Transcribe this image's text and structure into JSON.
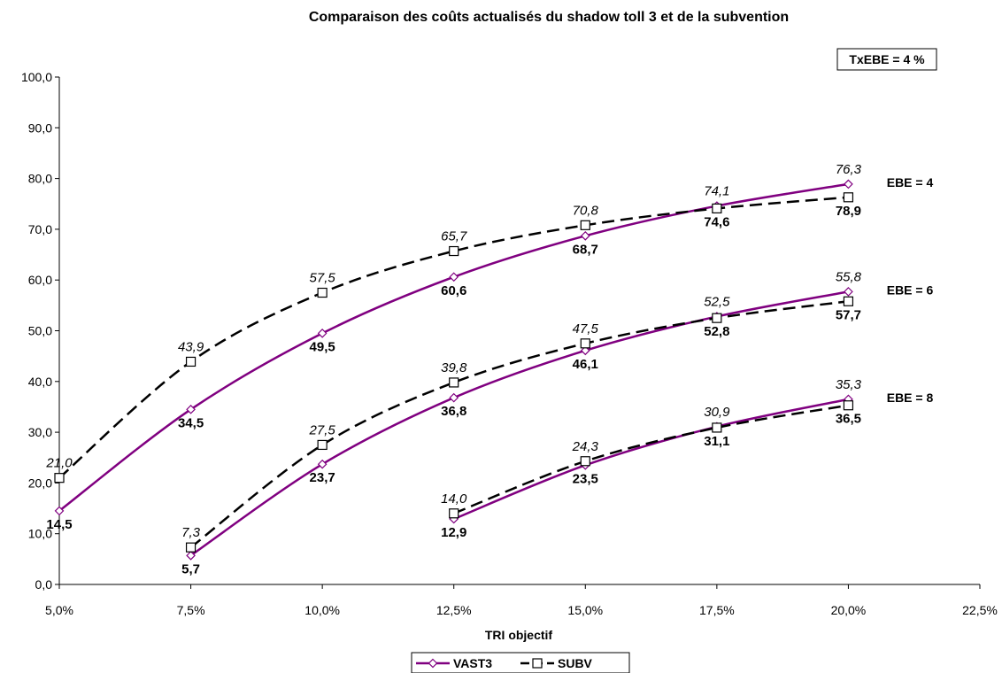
{
  "chart_data": {
    "type": "line",
    "title": "Comparaison des coûts actualisés du shadow toll 3 et de la subvention",
    "xlabel": "TRI objectif",
    "ylabel": "",
    "xlim": [
      0.05,
      0.225
    ],
    "ylim": [
      0,
      100
    ],
    "x_ticks": [
      "5,0%",
      "7,5%",
      "10,0%",
      "12,5%",
      "15,0%",
      "17,5%",
      "20,0%",
      "22,5%"
    ],
    "y_ticks": [
      "0,0",
      "10,0",
      "20,0",
      "30,0",
      "40,0",
      "50,0",
      "60,0",
      "70,0",
      "80,0",
      "90,0",
      "100,0"
    ],
    "grid": false,
    "legend_position": "bottom",
    "legend": [
      "VAST3",
      "SUBV"
    ],
    "annotations": {
      "top_box": "TxEBE = 4 %",
      "group_labels": [
        "EBE = 4",
        "EBE = 6",
        "EBE = 8"
      ]
    },
    "series": [
      {
        "name": "VAST3",
        "group": "EBE = 4",
        "style": "vast",
        "x": [
          0.05,
          0.075,
          0.1,
          0.125,
          0.15,
          0.175,
          0.2
        ],
        "y": [
          14.5,
          34.5,
          49.5,
          60.6,
          68.7,
          74.6,
          78.9
        ],
        "labels": [
          "14,5",
          "34,5",
          "49,5",
          "60,6",
          "68,7",
          "74,6",
          "78,9"
        ]
      },
      {
        "name": "SUBV",
        "group": "EBE = 4",
        "style": "subv",
        "x": [
          0.05,
          0.075,
          0.1,
          0.125,
          0.15,
          0.175,
          0.2
        ],
        "y": [
          21.0,
          43.9,
          57.5,
          65.7,
          70.8,
          74.1,
          76.3
        ],
        "labels": [
          "21,0",
          "43,9",
          "57,5",
          "65,7",
          "70,8",
          "74,1",
          "76,3"
        ]
      },
      {
        "name": "VAST3",
        "group": "EBE = 6",
        "style": "vast",
        "x": [
          0.075,
          0.1,
          0.125,
          0.15,
          0.175,
          0.2
        ],
        "y": [
          5.7,
          23.7,
          36.8,
          46.1,
          52.8,
          57.7
        ],
        "labels": [
          "5,7",
          "23,7",
          "36,8",
          "46,1",
          "52,8",
          "57,7"
        ]
      },
      {
        "name": "SUBV",
        "group": "EBE = 6",
        "style": "subv",
        "x": [
          0.075,
          0.1,
          0.125,
          0.15,
          0.175,
          0.2
        ],
        "y": [
          7.3,
          27.5,
          39.8,
          47.5,
          52.5,
          55.8
        ],
        "labels": [
          "7,3",
          "27,5",
          "39,8",
          "47,5",
          "52,5",
          "55,8"
        ]
      },
      {
        "name": "VAST3",
        "group": "EBE = 8",
        "style": "vast",
        "x": [
          0.125,
          0.15,
          0.175,
          0.2
        ],
        "y": [
          12.9,
          23.5,
          31.1,
          36.5
        ],
        "labels": [
          "12,9",
          "23,5",
          "31,1",
          "36,5"
        ]
      },
      {
        "name": "SUBV",
        "group": "EBE = 8",
        "style": "subv",
        "x": [
          0.125,
          0.15,
          0.175,
          0.2
        ],
        "y": [
          14.0,
          24.3,
          30.9,
          35.3
        ],
        "labels": [
          "14,0",
          "24,3",
          "30,9",
          "35,3"
        ]
      }
    ],
    "colors": {
      "vast": "#800080",
      "subv": "#000000"
    }
  }
}
